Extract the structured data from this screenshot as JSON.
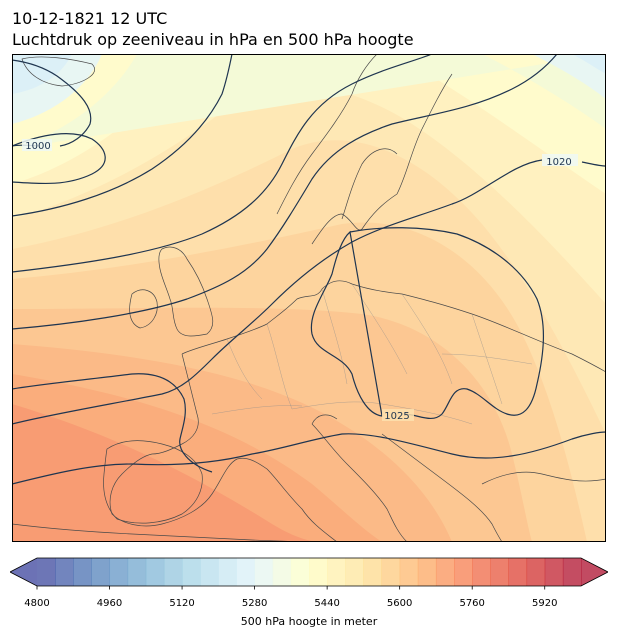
{
  "header": {
    "datetime": "10-12-1821 12 UTC",
    "subtitle": "Luchtdruk op zeeniveau in hPa en 500 hPa hoogte"
  },
  "map": {
    "region": "Europe",
    "isobar_labels": [
      {
        "id": "isobar-1000",
        "text": "1000"
      },
      {
        "id": "isobar-1020",
        "text": "1020"
      },
      {
        "id": "isobar-1025",
        "text": "1025"
      }
    ],
    "contour_color": "#1f3550"
  },
  "colorbar": {
    "label": "500 hPa hoogte in meter",
    "min": 4800,
    "max": 6000,
    "step": 40,
    "ticks": [
      "4800",
      "4960",
      "5120",
      "5280",
      "5440",
      "5600",
      "5760",
      "5920"
    ],
    "colormap": "RdYlBu_r",
    "extend": "both"
  }
}
